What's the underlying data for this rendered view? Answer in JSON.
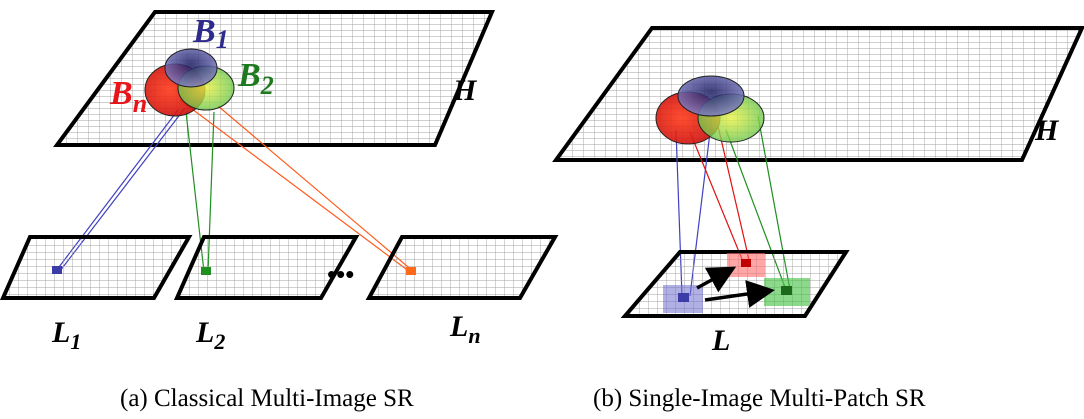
{
  "panel_a": {
    "caption": "(a) Classical Multi-Image SR",
    "high_res_label": "H",
    "blob_labels": [
      {
        "base": "B",
        "sub": "1",
        "color": "#2e2b8c"
      },
      {
        "base": "B",
        "sub": "n",
        "color": "#e8141a"
      },
      {
        "base": "B",
        "sub": "2",
        "color": "#1e7a1e"
      }
    ],
    "low_res_labels": [
      {
        "base": "L",
        "sub": "1"
      },
      {
        "base": "L",
        "sub": "2"
      },
      {
        "base": "L",
        "sub": "n"
      }
    ],
    "ellipsis": "•••"
  },
  "panel_b": {
    "caption": "(b) Single-Image Multi-Patch SR",
    "high_res_label": "H",
    "low_res_label": "L"
  },
  "colors": {
    "blue": "#3c3ca8",
    "red": "#e01010",
    "green": "#1f8f1f",
    "orange": "#ff6a1a",
    "grid": "#9a9a9a"
  }
}
